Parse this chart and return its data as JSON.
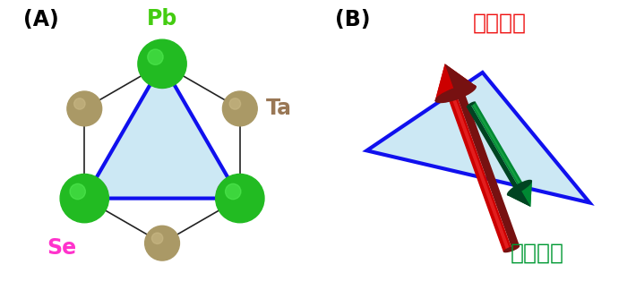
{
  "panel_A_label": "(A)",
  "panel_B_label": "(B)",
  "Pb_label": "Pb",
  "Ta_label": "Ta",
  "Se_label": "Se",
  "high_cond_label": "高伝導度",
  "low_cond_label": "低伝導度",
  "bg_color": "#ffffff",
  "triangle_fill": "#cce8f4",
  "triangle_edge": "#1010ee",
  "triangle_lw": 3.0,
  "Pb_color_dark": "#009900",
  "Pb_color_mid": "#22bb22",
  "Pb_color_light": "#55ee55",
  "Se_color": "#cc55bb",
  "Ta_color_dark": "#887744",
  "Ta_color_mid": "#aa9966",
  "Ta_color_light": "#ccbb88",
  "bond_color": "#222222",
  "Pb_label_color": "#44cc11",
  "Se_label_color": "#ff33cc",
  "Ta_label_color": "#997755",
  "high_cond_color": "#ee1111",
  "low_cond_color": "#009933",
  "label_fontsize": 16,
  "panel_label_fontsize": 17,
  "red_arrow_color": "#cc0000",
  "red_arrow_dark": "#771111",
  "red_arrow_light": "#ff4444",
  "green_arrow_color": "#008833",
  "green_arrow_dark": "#004422",
  "green_arrow_light": "#33bb55"
}
